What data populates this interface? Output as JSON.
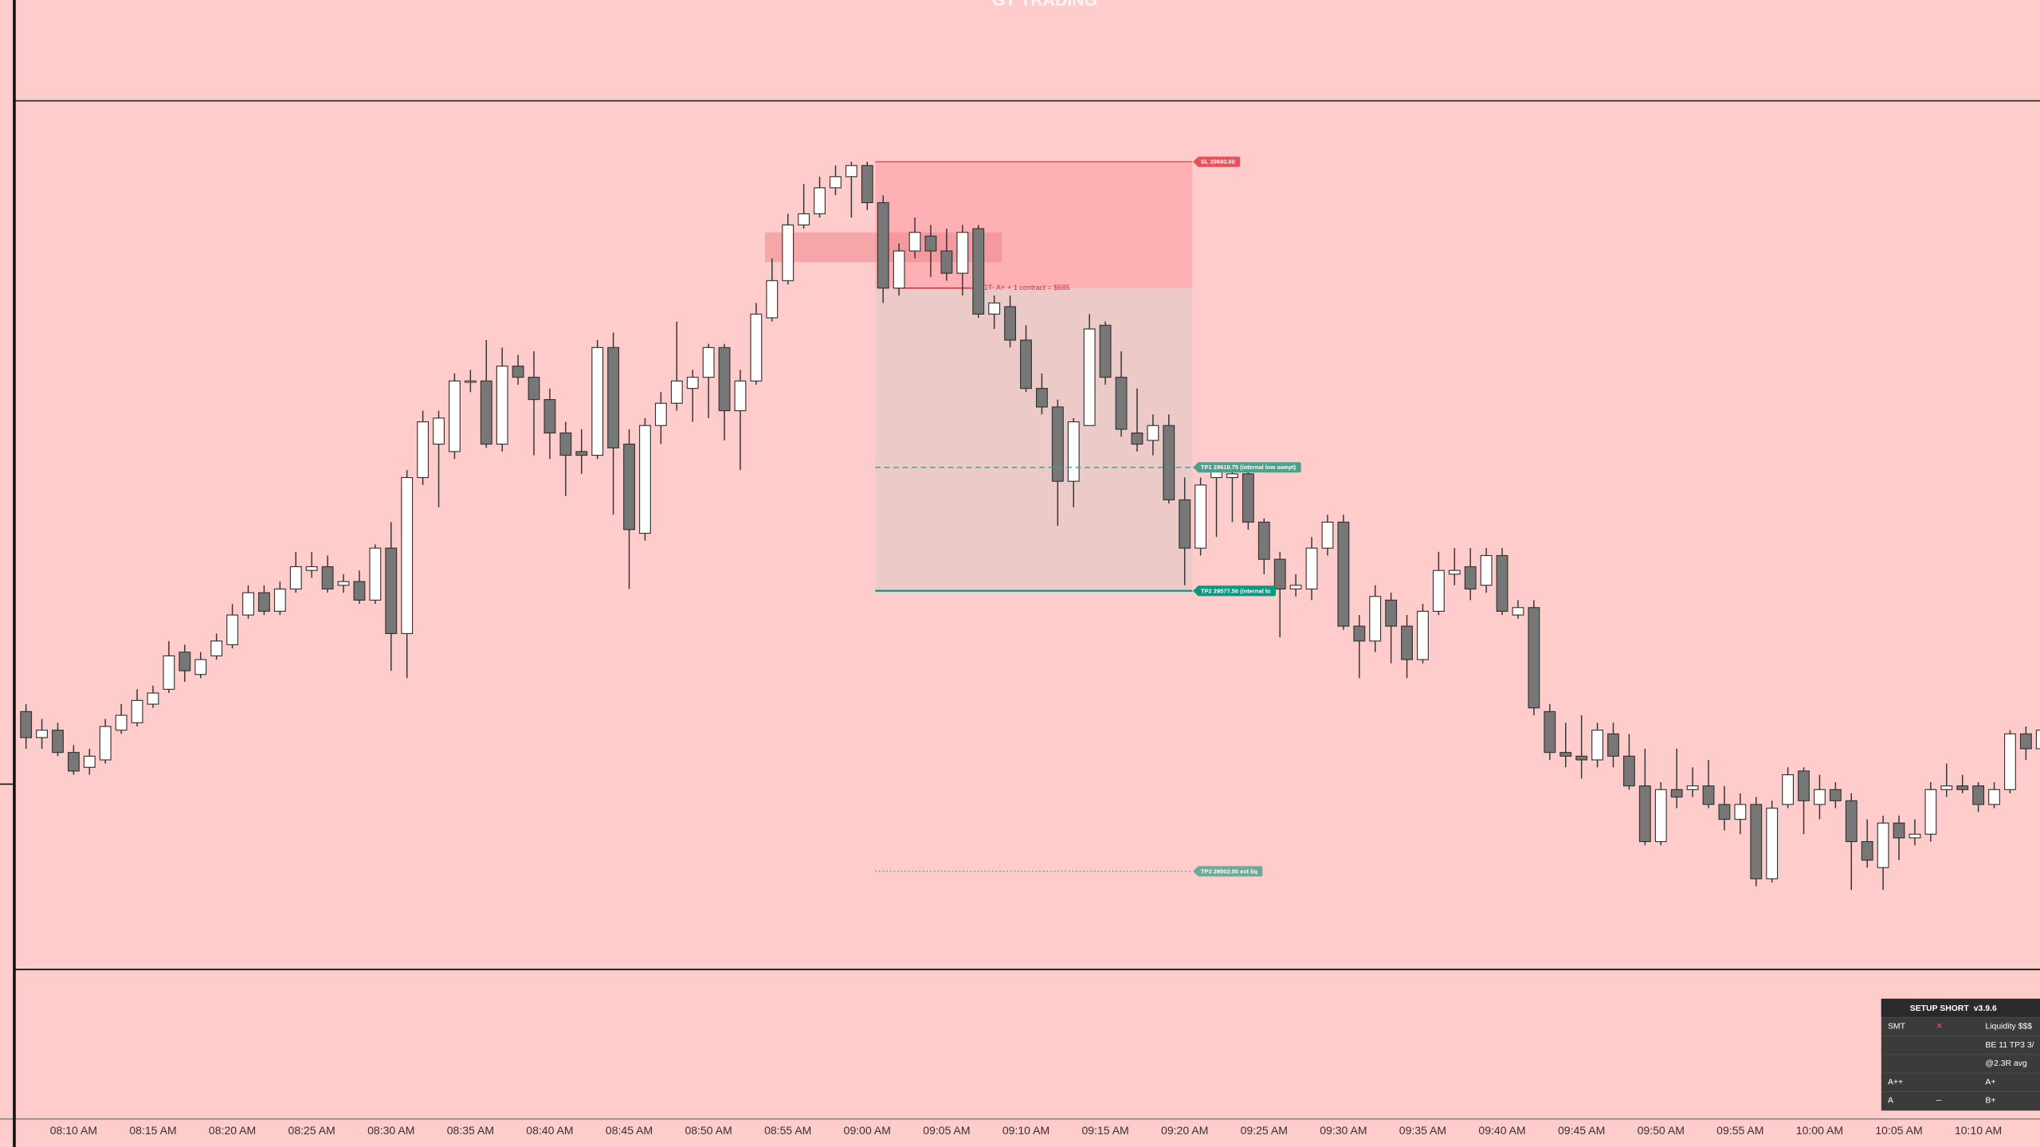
{
  "header": {
    "title": "GT TRADING"
  },
  "chart_data": {
    "type": "candlestick",
    "categories": [
      null,
      null,
      null,
      "08:10 AM",
      null,
      null,
      null,
      null,
      "08:15 AM",
      null,
      null,
      null,
      null,
      "08:20 AM",
      null,
      null,
      null,
      null,
      "08:25 AM",
      null,
      null,
      null,
      null,
      "08:30 AM",
      null,
      null,
      null,
      null,
      "08:35 AM",
      null,
      null,
      null,
      null,
      "08:40 AM",
      null,
      null,
      null,
      null,
      "08:45 AM",
      null,
      null,
      null,
      null,
      "08:50 AM",
      null,
      null,
      null,
      null,
      "08:55 AM",
      null,
      null,
      null,
      null,
      "09:00 AM",
      null,
      null,
      null,
      null,
      "09:05 AM",
      null,
      null,
      null,
      null,
      "09:10 AM",
      null,
      null,
      null,
      null,
      "09:15 AM",
      null,
      null,
      null,
      null,
      "09:20 AM",
      null,
      null,
      null,
      null,
      "09:25 AM",
      null,
      null,
      null,
      null,
      "09:30 AM",
      null,
      null,
      null,
      null,
      "09:35 AM",
      null,
      null,
      null,
      null,
      "09:40 AM",
      null,
      null,
      null,
      null,
      "09:45 AM",
      null,
      null,
      null,
      null,
      "09:50 AM",
      null,
      null,
      null,
      null,
      "09:55 AM",
      null,
      null,
      null,
      null,
      "10:00 AM",
      null,
      null,
      null,
      null,
      "10:05 AM",
      null,
      null,
      null,
      null,
      "10:10 AM",
      null,
      null,
      null,
      null
    ],
    "open": [
      29545,
      29538,
      29540,
      29534,
      29530,
      29532,
      29540,
      29542,
      29547,
      29551,
      29561,
      29555,
      29560,
      29563,
      29571,
      29577,
      29572,
      29578,
      29583,
      29584,
      29579,
      29580,
      29575,
      29589,
      29566,
      29608,
      29617,
      29615,
      29634,
      29634,
      29617,
      29638,
      29635,
      29629,
      29620,
      29615,
      29614,
      29643,
      29617,
      29593,
      29622,
      29628,
      29632,
      29635,
      29643,
      29626,
      29634,
      29651,
      29661,
      29676,
      29679,
      29686,
      29689,
      29692,
      29682,
      29659,
      29669,
      29673,
      29669,
      29663,
      29675,
      29652,
      29654,
      29645,
      29632,
      29627,
      29607,
      29622,
      29649,
      29635,
      29620,
      29618,
      29622,
      29602,
      29589,
      29608,
      29608,
      29609,
      29596,
      29586,
      29578,
      29578,
      29589,
      29596,
      29568,
      29564,
      29575,
      29568,
      29559,
      29572,
      29582,
      29584,
      29579,
      29587,
      29571,
      29573,
      29545,
      29534,
      29533,
      29532,
      29539,
      29533,
      29525,
      29510,
      29524,
      29524,
      29525,
      29520,
      29516,
      29520,
      29500,
      29520,
      29529,
      29520,
      29524,
      29521,
      29510,
      29503,
      29515,
      29511,
      29512,
      29524,
      29525,
      29525,
      29520,
      29524,
      29539,
      29535
    ],
    "high": [
      29547,
      29543,
      29542,
      29536,
      29535,
      29543,
      29547,
      29551,
      29552,
      29564,
      29563,
      29561,
      29566,
      29574,
      29579,
      29579,
      29580,
      29588,
      29588,
      29587,
      29582,
      29583,
      29590,
      29596,
      29610,
      29626,
      29626,
      29636,
      29637,
      29645,
      29643,
      29641,
      29642,
      29632,
      29623,
      29621,
      29645,
      29647,
      29621,
      29624,
      29631,
      29650,
      29637,
      29644,
      29644,
      29637,
      29655,
      29667,
      29679,
      29687,
      29689,
      29692,
      29693,
      29693,
      29684,
      29671,
      29678,
      29676,
      29675,
      29676,
      29676,
      29657,
      29657,
      29649,
      29636,
      29629,
      29624,
      29652,
      29650,
      29642,
      29632,
      29625,
      29625,
      29608,
      29608,
      29611,
      29610,
      29610,
      29597,
      29588,
      29582,
      29592,
      29598,
      29598,
      29571,
      29579,
      29577,
      29571,
      29574,
      29588,
      29589,
      29589,
      29589,
      29589,
      29575,
      29575,
      29547,
      29542,
      29544,
      29542,
      29542,
      29539,
      29535,
      29526,
      29535,
      29530,
      29532,
      29525,
      29523,
      29522,
      29521,
      29530,
      29530,
      29528,
      29526,
      29523,
      29516,
      29517,
      29517,
      29516,
      29526,
      29531,
      29528,
      29526,
      29526,
      29540,
      29541,
      29541
    ],
    "low": [
      29535,
      29535,
      29533,
      29528,
      29528,
      29531,
      29539,
      29541,
      29546,
      29550,
      29553,
      29554,
      29559,
      29562,
      29570,
      29571,
      29571,
      29577,
      29581,
      29577,
      29577,
      29574,
      29574,
      29556,
      29554,
      29606,
      29600,
      29613,
      29631,
      29616,
      29615,
      29633,
      29614,
      29613,
      29603,
      29609,
      29613,
      29598,
      29578,
      29591,
      29617,
      29626,
      29623,
      29624,
      29618,
      29610,
      29633,
      29650,
      29660,
      29675,
      29678,
      29684,
      29678,
      29680,
      29655,
      29657,
      29667,
      29662,
      29661,
      29657,
      29651,
      29648,
      29643,
      29631,
      29625,
      29595,
      29600,
      29622,
      29633,
      29619,
      29615,
      29614,
      29601,
      29579,
      29587,
      29592,
      29596,
      29594,
      29582,
      29565,
      29576,
      29575,
      29587,
      29567,
      29554,
      29561,
      29558,
      29554,
      29558,
      29571,
      29579,
      29575,
      29577,
      29571,
      29570,
      29544,
      29532,
      29530,
      29527,
      29530,
      29530,
      29524,
      29509,
      29509,
      29519,
      29522,
      29519,
      29513,
      29512,
      29498,
      29499,
      29519,
      29512,
      29516,
      29519,
      29497,
      29503,
      29497,
      29505,
      29509,
      29510,
      29522,
      29523,
      29518,
      29519,
      29523,
      29532,
      29529
    ],
    "close": [
      29538,
      29540,
      29534,
      29529,
      29533,
      29541,
      29544,
      29548,
      29550,
      29560,
      29556,
      29559,
      29564,
      29571,
      29577,
      29572,
      29578,
      29584,
      29584,
      29578,
      29580,
      29575,
      29589,
      29566,
      29608,
      29623,
      29624,
      29634,
      29634,
      29617,
      29638,
      29635,
      29629,
      29620,
      29614,
      29614,
      29643,
      29616,
      29594,
      29622,
      29628,
      29634,
      29635,
      29643,
      29626,
      29634,
      29652,
      29661,
      29676,
      29679,
      29686,
      29689,
      29692,
      29682,
      29659,
      29669,
      29674,
      29669,
      29663,
      29674,
      29652,
      29655,
      29645,
      29632,
      29627,
      29607,
      29623,
      29648,
      29635,
      29621,
      29617,
      29622,
      29602,
      29589,
      29606,
      29610,
      29609,
      29596,
      29586,
      29578,
      29579,
      29589,
      29596,
      29568,
      29564,
      29576,
      29568,
      29559,
      29572,
      29583,
      29583,
      29578,
      29587,
      29572,
      29573,
      29546,
      29534,
      29533,
      29532,
      29540,
      29533,
      29525,
      29510,
      29524,
      29522,
      29525,
      29520,
      29516,
      29520,
      29500,
      29519,
      29528,
      29521,
      29524,
      29521,
      29510,
      29505,
      29515,
      29511,
      29512,
      29524,
      29525,
      29524,
      29520,
      29524,
      29539,
      29535,
      29540
    ],
    "up_color": "#ffffff",
    "down_color": "#777777",
    "ylim": [
      29475.75,
      29709.25
    ],
    "levels": [
      {
        "label": "SL 29693.00",
        "value": 29693,
        "color": "#e8505b",
        "style": "solid"
      },
      {
        "label": "TP1 29610.75 (internal low swept)",
        "value": 29610.75,
        "color": "#4fa08b",
        "style": "dashed"
      },
      {
        "label": "TP2 29577.50 (internal lo",
        "value": 29577.5,
        "color": "#089981",
        "style": "solid"
      },
      {
        "label": "TP3 29502.00 ext liq",
        "value": 29502,
        "color": "#6aab9c",
        "style": "dotted"
      }
    ],
    "entry": {
      "value": 29659,
      "label": "GT- A+ + 1 contract = $685"
    },
    "zone": {
      "from": 29674,
      "to": 29666
    }
  },
  "panel": {
    "title": "SETUP SHORT",
    "version": "v3.9.6",
    "rows": [
      {
        "left": "SMT",
        "middle": "✕",
        "right": "Liquidity $$$"
      },
      {
        "right": "BE 11  TP3 3/"
      },
      {
        "right": "@2.3R avg"
      },
      {
        "left": "A++",
        "right": "A+"
      },
      {
        "left": "A",
        "middle": "--",
        "right": "B+"
      }
    ]
  }
}
